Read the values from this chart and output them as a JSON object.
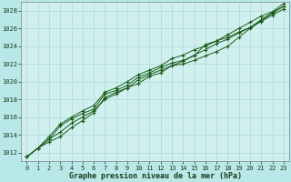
{
  "title": "Graphe pression niveau de la mer (hPa)",
  "fig_bg_color": "#b8e8e8",
  "plot_bg_color": "#d0f0f0",
  "grid_color": "#b0d8d0",
  "line_color": "#1a5c1a",
  "marker_color": "#1a5c1a",
  "xlim": [
    -0.5,
    23.5
  ],
  "ylim": [
    1011.0,
    1029.0
  ],
  "yticks": [
    1012,
    1014,
    1016,
    1018,
    1020,
    1022,
    1024,
    1026,
    1028
  ],
  "xticks": [
    0,
    1,
    2,
    3,
    4,
    5,
    6,
    7,
    8,
    9,
    10,
    11,
    12,
    13,
    14,
    15,
    16,
    17,
    18,
    19,
    20,
    21,
    22,
    23
  ],
  "series": [
    [
      1011.5,
      1012.5,
      1013.2,
      1013.8,
      1014.8,
      1015.6,
      1016.5,
      1018.2,
      1018.8,
      1019.3,
      1020.2,
      1020.8,
      1021.3,
      1021.8,
      1022.0,
      1022.4,
      1022.9,
      1023.4,
      1024.0,
      1025.0,
      1026.0,
      1026.8,
      1027.5,
      1028.2
    ],
    [
      1011.5,
      1012.5,
      1013.5,
      1015.0,
      1015.8,
      1016.4,
      1016.9,
      1018.6,
      1019.0,
      1019.6,
      1020.5,
      1021.0,
      1021.6,
      1022.1,
      1022.4,
      1022.9,
      1024.2,
      1024.6,
      1025.0,
      1025.6,
      1026.1,
      1027.0,
      1027.8,
      1028.5
    ],
    [
      1011.5,
      1012.5,
      1013.8,
      1015.2,
      1016.0,
      1016.7,
      1017.3,
      1018.8,
      1019.3,
      1020.0,
      1020.8,
      1021.3,
      1021.8,
      1022.6,
      1023.0,
      1023.6,
      1024.0,
      1024.6,
      1025.3,
      1026.0,
      1026.7,
      1027.4,
      1027.9,
      1028.8
    ],
    [
      1011.5,
      1012.5,
      1013.5,
      1014.3,
      1015.3,
      1016.0,
      1016.7,
      1018.0,
      1018.6,
      1019.3,
      1019.8,
      1020.6,
      1021.0,
      1021.8,
      1022.3,
      1023.0,
      1023.6,
      1024.3,
      1024.8,
      1025.5,
      1026.1,
      1026.9,
      1027.7,
      1028.5
    ]
  ]
}
